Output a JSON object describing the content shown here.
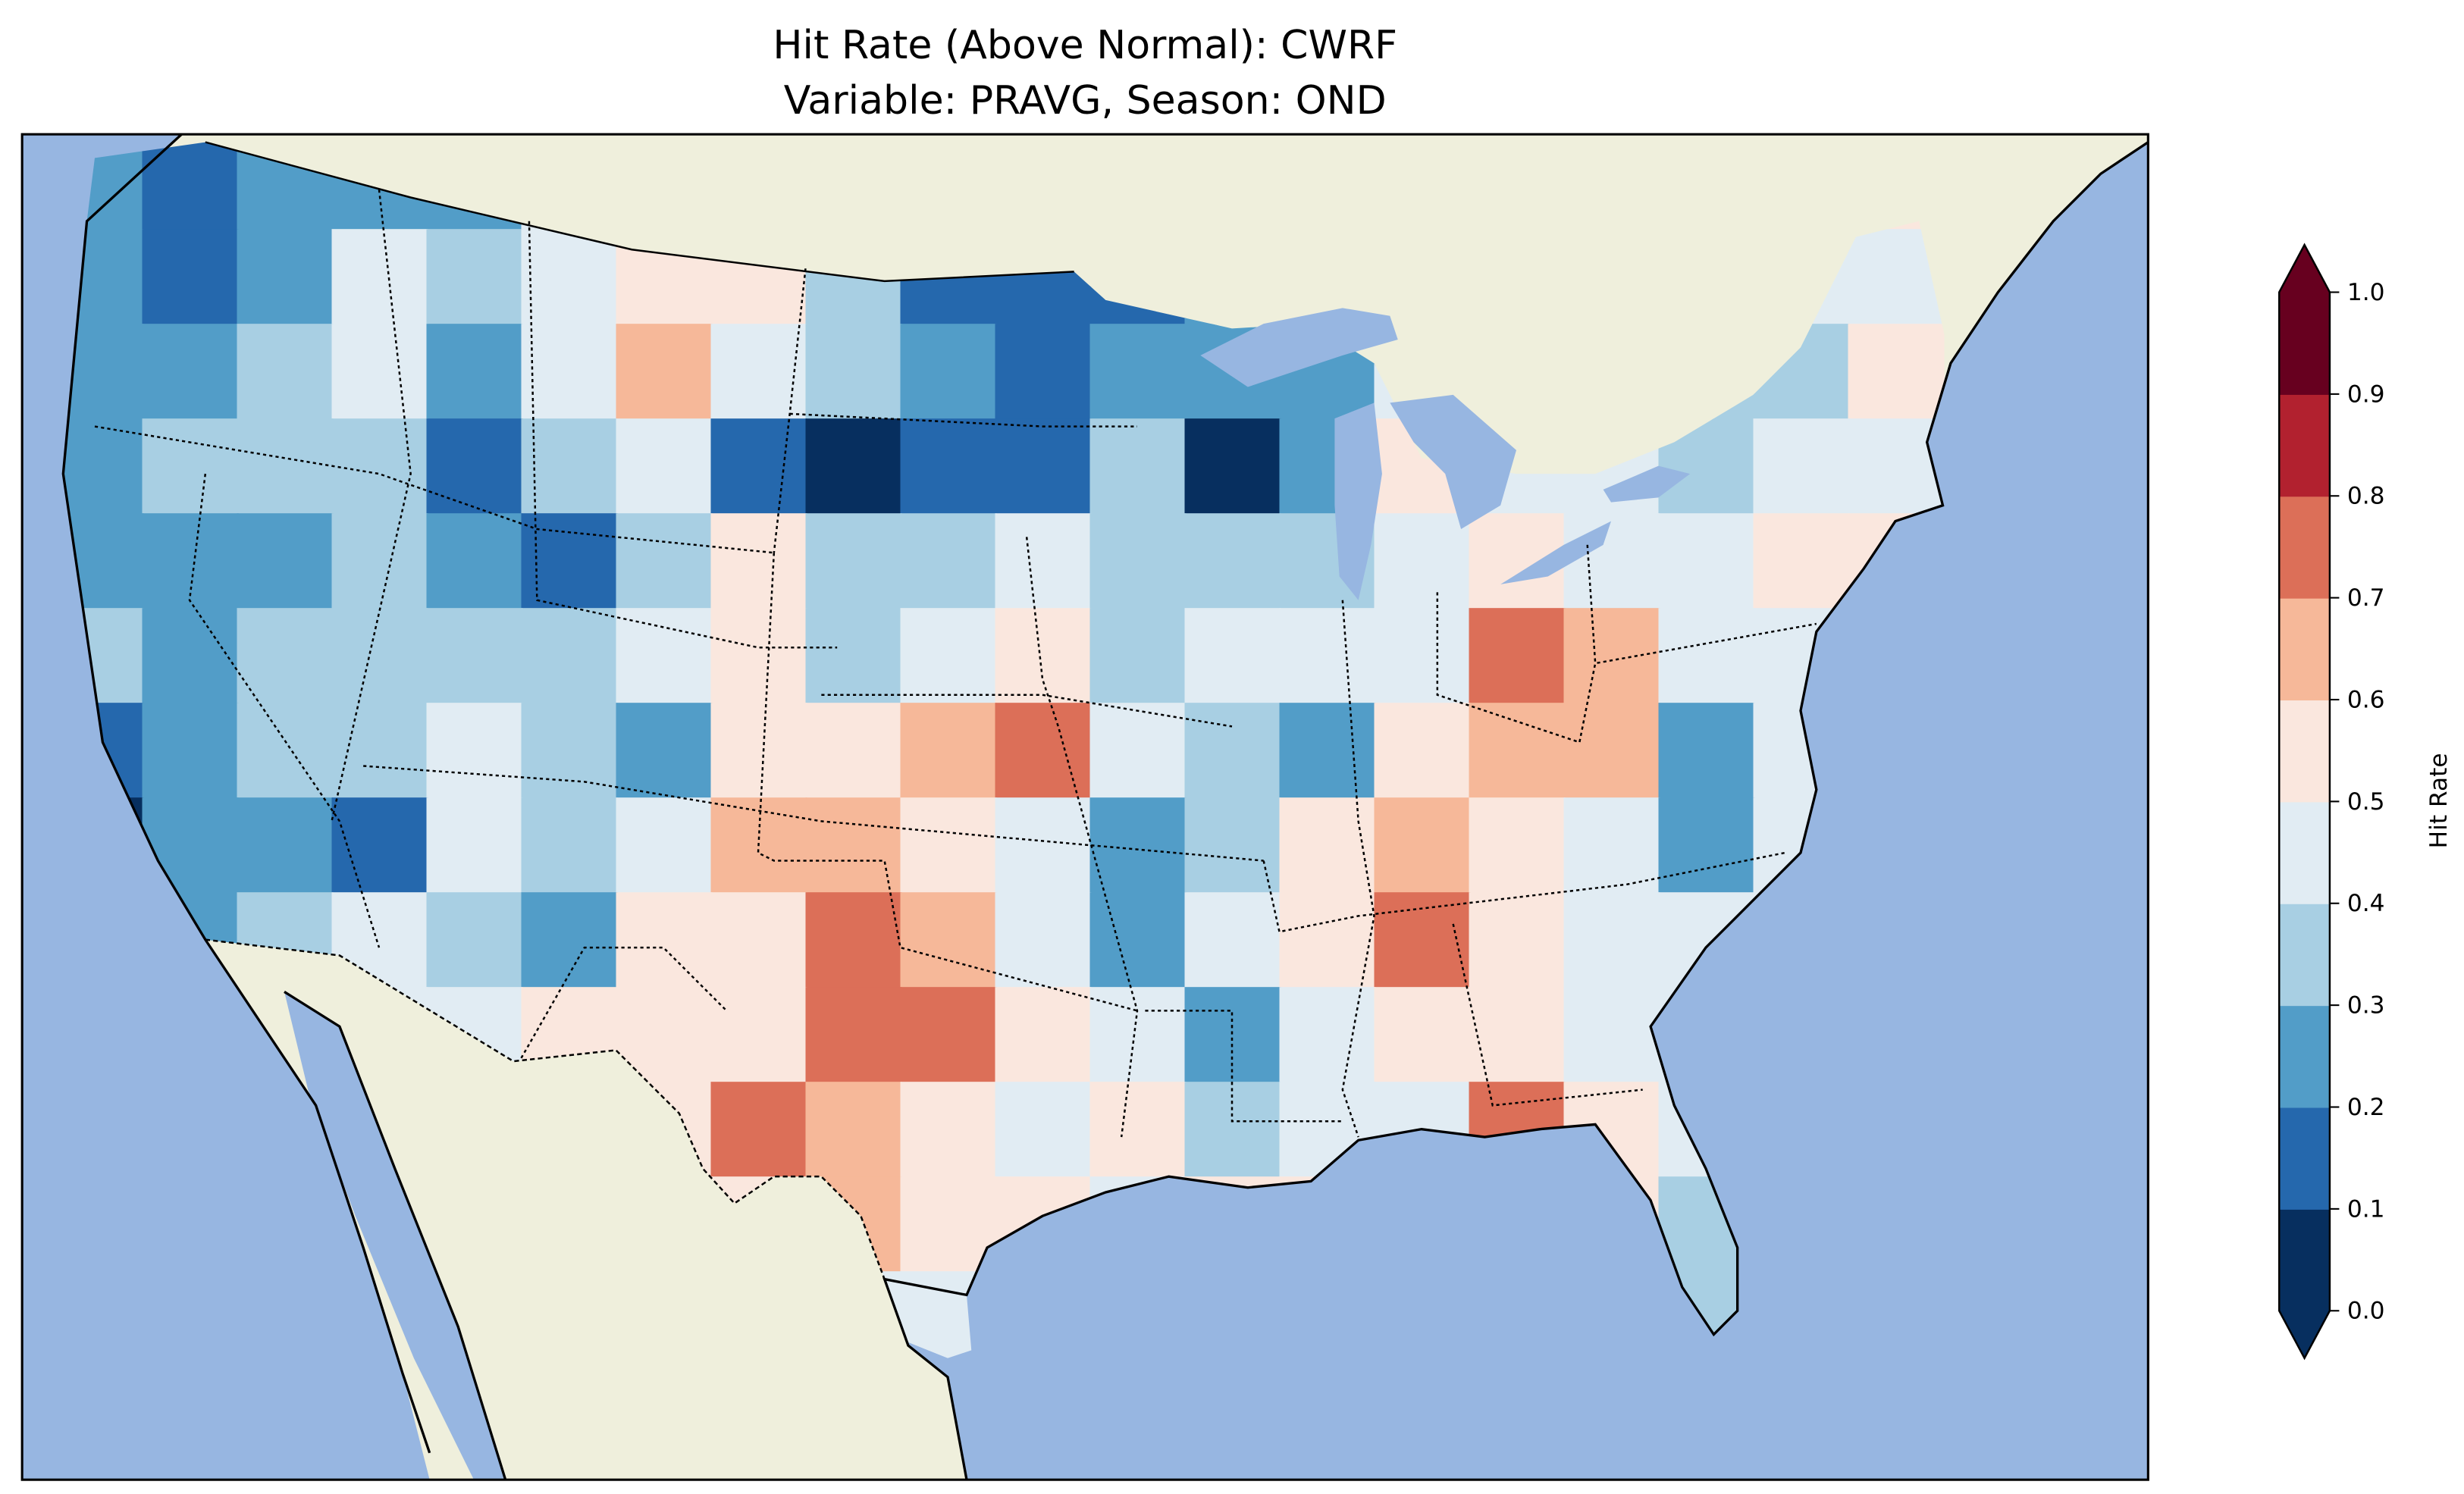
{
  "title_line1": "Hit Rate (Above Normal): CWRF",
  "title_line2": "Variable: PRAVG, Season: OND",
  "colorbar": {
    "label": "Hit Rate",
    "ticks": [
      "0.0",
      "0.1",
      "0.2",
      "0.3",
      "0.4",
      "0.5",
      "0.6",
      "0.7",
      "0.8",
      "0.9",
      "1.0"
    ],
    "bounds": [
      0.0,
      0.1,
      0.2,
      0.3,
      0.4,
      0.5,
      0.6,
      0.7,
      0.8,
      0.9,
      1.0
    ],
    "colors": [
      "#072f5f",
      "#2568ad",
      "#529dc8",
      "#a8cfe3",
      "#e1ecf3",
      "#fae7de",
      "#f6b899",
      "#dc6f58",
      "#b2212f",
      "#67001f"
    ],
    "extend": "both"
  },
  "map_colors": {
    "ocean": "#97b6e1",
    "land": "#efefdc"
  },
  "chart_data": {
    "type": "heatmap",
    "title": "Hit Rate (Above Normal): CWRF / Variable: PRAVG, Season: OND",
    "region": "Contiguous United States",
    "value_note": "approximate hit-rate class index per coarse grid cell (0 = 0.0-0.1 ... 9 = 0.9-1.0), west to east, north to south",
    "grid": [
      [
        2,
        1,
        2,
        2,
        2,
        4,
        5,
        5,
        4,
        3,
        1,
        1,
        2,
        4,
        4,
        4,
        4,
        4,
        4,
        5
      ],
      [
        2,
        1,
        2,
        4,
        3,
        4,
        5,
        5,
        3,
        1,
        1,
        1,
        2,
        3,
        4,
        4,
        4,
        4,
        4,
        4
      ],
      [
        2,
        2,
        3,
        4,
        2,
        4,
        6,
        4,
        3,
        2,
        1,
        2,
        2,
        2,
        4,
        4,
        4,
        3,
        3,
        5
      ],
      [
        2,
        3,
        3,
        3,
        1,
        3,
        4,
        1,
        0,
        1,
        1,
        3,
        0,
        2,
        5,
        4,
        4,
        3,
        4,
        4
      ],
      [
        2,
        2,
        2,
        3,
        2,
        1,
        3,
        5,
        3,
        3,
        4,
        3,
        3,
        3,
        4,
        5,
        4,
        4,
        5,
        5
      ],
      [
        3,
        2,
        3,
        3,
        3,
        3,
        4,
        5,
        3,
        4,
        5,
        3,
        4,
        4,
        4,
        7,
        6,
        4,
        4,
        4
      ],
      [
        1,
        2,
        3,
        3,
        4,
        3,
        2,
        5,
        5,
        6,
        7,
        4,
        3,
        2,
        5,
        6,
        6,
        2,
        4,
        4
      ],
      [
        0,
        2,
        2,
        1,
        4,
        3,
        4,
        6,
        6,
        5,
        4,
        2,
        3,
        5,
        6,
        5,
        4,
        2,
        4,
        4
      ],
      [
        2,
        2,
        3,
        4,
        3,
        2,
        5,
        5,
        7,
        6,
        4,
        2,
        4,
        5,
        7,
        5,
        4,
        4,
        4,
        4
      ],
      [
        3,
        3,
        4,
        4,
        4,
        5,
        5,
        5,
        7,
        7,
        5,
        4,
        2,
        4,
        5,
        5,
        4,
        4,
        4,
        4
      ],
      [
        4,
        4,
        4,
        4,
        4,
        4,
        5,
        7,
        6,
        5,
        4,
        5,
        3,
        4,
        4,
        7,
        5,
        4,
        4,
        4
      ],
      [
        4,
        4,
        4,
        4,
        4,
        4,
        5,
        5,
        6,
        5,
        5,
        4,
        5,
        5,
        5,
        5,
        5,
        3,
        3,
        4
      ],
      [
        4,
        4,
        4,
        4,
        4,
        4,
        4,
        4,
        4,
        4,
        4,
        4,
        4,
        4,
        4,
        4,
        4,
        3,
        3,
        4
      ]
    ]
  }
}
